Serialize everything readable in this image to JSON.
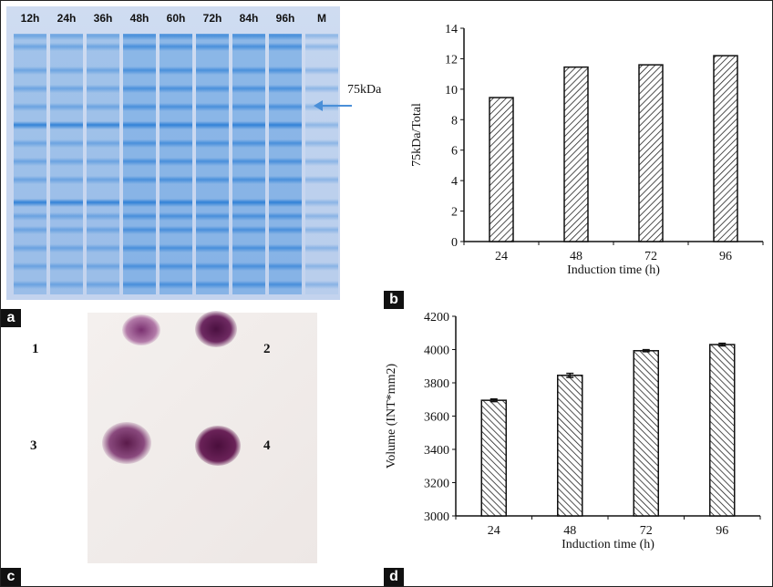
{
  "panel_labels": [
    "a",
    "b",
    "c",
    "d"
  ],
  "gel": {
    "lanes": [
      "12h",
      "24h",
      "36h",
      "48h",
      "60h",
      "72h",
      "84h",
      "96h",
      "M"
    ],
    "marker_label": "75kDa",
    "lane_color": "#2d7fd6",
    "background": "#c8d6ee"
  },
  "dot_blot": {
    "spots": [
      "1",
      "2",
      "3",
      "4"
    ],
    "spot_color": "#5a1a4a"
  },
  "chart_data": [
    {
      "type": "bar",
      "title": "",
      "categories": [
        "24",
        "48",
        "72",
        "96"
      ],
      "values": [
        9.45,
        11.45,
        11.6,
        12.2
      ],
      "xlabel": "Induction time (h)",
      "ylabel": "75kDa/Total",
      "ylim": [
        0,
        14
      ],
      "yticks": [
        "0",
        "2",
        "4",
        "6",
        "8",
        "10",
        "12",
        "14"
      ],
      "pattern": "hatch"
    },
    {
      "type": "bar",
      "title": "",
      "categories": [
        "24",
        "48",
        "72",
        "96"
      ],
      "values": [
        3695,
        3845,
        3993,
        4030
      ],
      "errors": [
        8,
        12,
        6,
        8
      ],
      "xlabel": "Induction time (h)",
      "ylabel": "Volume (INT*mm2)",
      "ylim": [
        3000,
        4200
      ],
      "yticks": [
        "3000",
        "3200",
        "3400",
        "3600",
        "3800",
        "4000",
        "4200"
      ],
      "pattern": "hatch"
    }
  ]
}
